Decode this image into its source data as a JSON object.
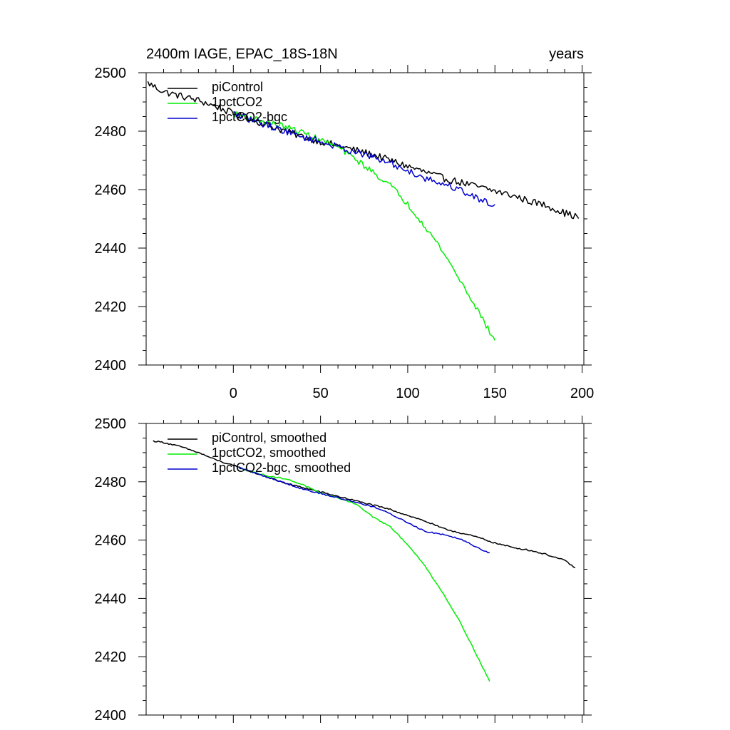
{
  "chart_data": [
    {
      "type": "line",
      "title": "2400m IAGE, EPAC_18S-18N",
      "title_right": "years",
      "xlim": [
        -50,
        201
      ],
      "ylim": [
        2400,
        2500
      ],
      "xticks": [
        0,
        50,
        100,
        150,
        200
      ],
      "xtick_labels": [
        "0",
        "50",
        "100",
        "150",
        "200"
      ],
      "yticks": [
        2400,
        2420,
        2440,
        2460,
        2480,
        2500
      ],
      "ytick_labels": [
        "2400",
        "2420",
        "2440",
        "2460",
        "2480",
        "2500"
      ],
      "legend_position": "top-left",
      "series": [
        {
          "name": "piControl",
          "color": "#000000",
          "noise": 1.2,
          "x": [
            -49,
            -40,
            -30,
            -20,
            -10,
            0,
            10,
            20,
            30,
            40,
            50,
            60,
            70,
            80,
            90,
            100,
            110,
            120,
            130,
            140,
            150,
            160,
            170,
            180,
            190,
            198
          ],
          "y": [
            2496.5,
            2493.5,
            2492.0,
            2490.5,
            2488.5,
            2486.0,
            2484.0,
            2482.0,
            2480.0,
            2478.0,
            2476.5,
            2475.0,
            2473.5,
            2472.0,
            2470.0,
            2468.0,
            2466.0,
            2464.0,
            2462.5,
            2461.0,
            2459.5,
            2458.0,
            2456.0,
            2454.5,
            2452.0,
            2450.5
          ]
        },
        {
          "name": "1pctCO2",
          "color": "#00ee00",
          "noise": 1.0,
          "x": [
            0,
            10,
            20,
            30,
            40,
            50,
            60,
            70,
            80,
            90,
            100,
            110,
            120,
            130,
            140,
            150
          ],
          "y": [
            2486.0,
            2484.5,
            2483.0,
            2481.5,
            2479.5,
            2477.0,
            2474.5,
            2470.5,
            2466.0,
            2461.5,
            2455.0,
            2447.5,
            2439.0,
            2429.0,
            2419.0,
            2408.0
          ]
        },
        {
          "name": "1pctCO2-bgc",
          "color": "#0000cc",
          "noise": 1.2,
          "x": [
            0,
            10,
            20,
            30,
            40,
            50,
            60,
            70,
            80,
            90,
            100,
            110,
            120,
            130,
            140,
            150
          ],
          "y": [
            2486.0,
            2484.0,
            2482.0,
            2480.0,
            2478.0,
            2476.5,
            2474.5,
            2473.0,
            2471.0,
            2469.0,
            2466.5,
            2464.0,
            2462.0,
            2460.0,
            2457.0,
            2454.5
          ]
        }
      ]
    },
    {
      "type": "line",
      "title": "",
      "xlim": [
        -50,
        201
      ],
      "ylim": [
        2400,
        2500
      ],
      "xticks": [
        0,
        50,
        100,
        150,
        200
      ],
      "xtick_labels": [],
      "yticks": [
        2400,
        2420,
        2440,
        2460,
        2480,
        2500
      ],
      "ytick_labels": [
        "2400",
        "2420",
        "2440",
        "2460",
        "2480",
        "2500"
      ],
      "legend_position": "top-left",
      "series": [
        {
          "name": "piControl, smoothed",
          "color": "#000000",
          "noise": 0.25,
          "x": [
            -46,
            -40,
            -30,
            -20,
            -10,
            0,
            10,
            20,
            30,
            40,
            50,
            60,
            70,
            80,
            90,
            100,
            110,
            120,
            130,
            140,
            150,
            160,
            170,
            180,
            190,
            196
          ],
          "y": [
            2494.0,
            2493.5,
            2492.0,
            2490.0,
            2487.5,
            2485.5,
            2483.5,
            2481.5,
            2479.5,
            2478.0,
            2476.5,
            2475.0,
            2473.5,
            2472.0,
            2470.5,
            2468.5,
            2466.5,
            2464.0,
            2462.5,
            2461.0,
            2459.0,
            2457.5,
            2456.5,
            2455.0,
            2453.0,
            2450.5
          ]
        },
        {
          "name": "1pctCO2, smoothed",
          "color": "#00ee00",
          "noise": 0.2,
          "x": [
            3,
            10,
            20,
            30,
            40,
            50,
            60,
            70,
            80,
            90,
            100,
            110,
            120,
            130,
            140,
            147
          ],
          "y": [
            2485.0,
            2483.5,
            2482.0,
            2481.0,
            2479.0,
            2476.0,
            2474.5,
            2472.5,
            2468.0,
            2464.5,
            2458.5,
            2451.0,
            2442.0,
            2432.0,
            2420.0,
            2411.5
          ]
        },
        {
          "name": "1pctCO2-bgc, smoothed",
          "color": "#0000cc",
          "noise": 0.25,
          "x": [
            3,
            10,
            20,
            30,
            40,
            50,
            60,
            70,
            80,
            90,
            100,
            110,
            120,
            130,
            140,
            147
          ],
          "y": [
            2485.0,
            2483.5,
            2481.5,
            2479.5,
            2477.5,
            2476.0,
            2474.5,
            2473.0,
            2471.5,
            2469.0,
            2466.0,
            2463.0,
            2462.0,
            2460.5,
            2457.5,
            2455.5
          ]
        }
      ]
    }
  ]
}
